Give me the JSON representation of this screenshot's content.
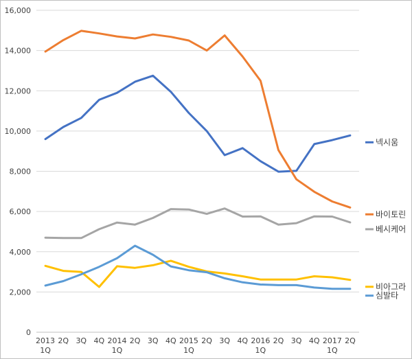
{
  "chart_data": {
    "type": "line",
    "x_ticks": [
      [
        "2013",
        "1Q"
      ],
      [
        "2Q",
        ""
      ],
      [
        "3Q",
        ""
      ],
      [
        "4Q",
        ""
      ],
      [
        "2014",
        "1Q"
      ],
      [
        "2Q",
        ""
      ],
      [
        "3Q",
        ""
      ],
      [
        "4Q",
        ""
      ],
      [
        "2015",
        "1Q"
      ],
      [
        "2Q",
        ""
      ],
      [
        "3Q",
        ""
      ],
      [
        "4Q",
        ""
      ],
      [
        "2016",
        "1Q"
      ],
      [
        "2Q",
        ""
      ],
      [
        "3Q",
        ""
      ],
      [
        "4Q",
        ""
      ],
      [
        "2017",
        "1Q"
      ],
      [
        "2Q",
        ""
      ]
    ],
    "y_ticks": [
      "0",
      "2,000",
      "4,000",
      "6,000",
      "8,000",
      "10,000",
      "12,000",
      "14,000",
      "16,000"
    ],
    "ylim": [
      0,
      16000
    ],
    "grid": true,
    "legend_position": "right",
    "series": [
      {
        "name": "넥시움",
        "color": "#4472c4",
        "values": [
          9600,
          10200,
          10650,
          11550,
          11900,
          12450,
          12750,
          11950,
          10900,
          10000,
          8800,
          9150,
          8500,
          7980,
          8020,
          9350,
          9550,
          9780
        ]
      },
      {
        "name": "바이토린",
        "color": "#ed7d31",
        "values": [
          13950,
          14520,
          14980,
          14850,
          14700,
          14600,
          14800,
          14680,
          14500,
          14000,
          14750,
          13700,
          12500,
          9050,
          7600,
          6980,
          6500,
          6200
        ]
      },
      {
        "name": "베시케어",
        "color": "#a5a5a5",
        "values": [
          4700,
          4680,
          4680,
          5120,
          5450,
          5350,
          5680,
          6120,
          6100,
          5880,
          6150,
          5750,
          5760,
          5350,
          5420,
          5760,
          5750,
          5460
        ]
      },
      {
        "name": "비아그라",
        "color": "#ffc000",
        "values": [
          3300,
          3050,
          3000,
          2250,
          3280,
          3200,
          3330,
          3550,
          3250,
          3020,
          2920,
          2780,
          2620,
          2620,
          2620,
          2780,
          2730,
          2600
        ]
      },
      {
        "name": "심발타",
        "color": "#5b9bd5",
        "values": [
          2320,
          2540,
          2880,
          3250,
          3680,
          4300,
          3850,
          3270,
          3080,
          2980,
          2680,
          2480,
          2370,
          2340,
          2340,
          2220,
          2160,
          2160
        ]
      }
    ]
  }
}
